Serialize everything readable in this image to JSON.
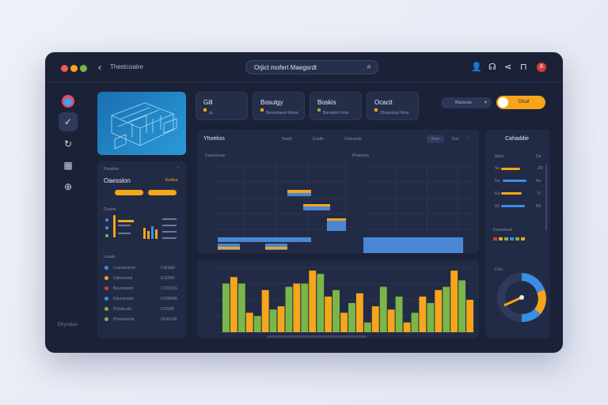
{
  "titlebar": {
    "crumb": "Thestcoaire",
    "search_text": "Orjict mofert Maegsrdt",
    "alert_count": "8"
  },
  "sidebar": {
    "items": [
      "avatar",
      "check-icon",
      "refresh-icon",
      "grid-icon",
      "globe-icon"
    ],
    "footer": "Ehyndieu"
  },
  "stats": [
    {
      "title": "Gill",
      "sub": "ss",
      "mark": "#f7a51b"
    },
    {
      "title": "Bosulgy",
      "sub": "Bereatnaret 9elow",
      "mark": "#f7a51b"
    },
    {
      "title": "Boskis",
      "sub": "Bansalmi noss",
      "mark": "#7ab648"
    },
    {
      "title": "Ocacit",
      "sub": "Ofsuaniaut 9snu",
      "mark": "#f7a51b"
    }
  ],
  "controls": {
    "select_label": "Blasseaa",
    "toggle_label": "Dlsal"
  },
  "left_panel": {
    "header": "Posaloie",
    "name": "Oaesslon",
    "badge": "Eodlea",
    "section2": "Dnaole",
    "section3": "Lnaals",
    "list": [
      {
        "label": "Crarsanicmn",
        "val": "CIAS&E",
        "color": "#3a8ee6"
      },
      {
        "label": "Dlalsvestal",
        "val": "ESOM6",
        "color": "#f7a51b"
      },
      {
        "label": "Bevsnalwnl",
        "val": "CCM1SS",
        "color": "#d33b3b"
      },
      {
        "label": "Kbiarleniuls",
        "val": "DSSMRE",
        "color": "#3a8ee6"
      },
      {
        "label": "Plolaleuds",
        "val": "CUSRE",
        "color": "#7ab648"
      },
      {
        "label": "Phandaanle",
        "val": "ODASSE",
        "color": "#7ab648"
      }
    ]
  },
  "center_header": {
    "title": "Yhoekss",
    "tabs": [
      "Toiadt",
      "Esatle",
      "Ctoesede"
    ],
    "chips": [
      "Ihoo",
      "Eon"
    ]
  },
  "gantt_left": {
    "title": "Cauesnnan"
  },
  "gantt_right": {
    "title": "Phabsors"
  },
  "chart_data": {
    "type": "bar",
    "series": [
      {
        "color": "#7ab648",
        "values": [
          0.75,
          0.75,
          0.25,
          0.35,
          0.7,
          0.75,
          0.9,
          0.65,
          0.45,
          0.15,
          0.7,
          0.55,
          0.3,
          0.45,
          0.7,
          0.8
        ]
      },
      {
        "color": "#f7a51b",
        "values": [
          0.85,
          0.3,
          0.65,
          0.4,
          0.75,
          0.95,
          0.55,
          0.3,
          0.6,
          0.4,
          0.35,
          0.15,
          0.55,
          0.65,
          0.95,
          0.5
        ]
      }
    ]
  },
  "right_panel": {
    "title": "Cahaddie",
    "rows": [
      {
        "label": "Batsi",
        "val": "Da"
      },
      {
        "label": "Sa",
        "val": "ZN"
      },
      {
        "label": "Ga",
        "val": "Aa"
      },
      {
        "label": "Ea",
        "val": "D"
      },
      {
        "label": "S3",
        "val": "BS"
      }
    ],
    "footer": "Forowlnuls",
    "gauge_label": "Clns"
  }
}
